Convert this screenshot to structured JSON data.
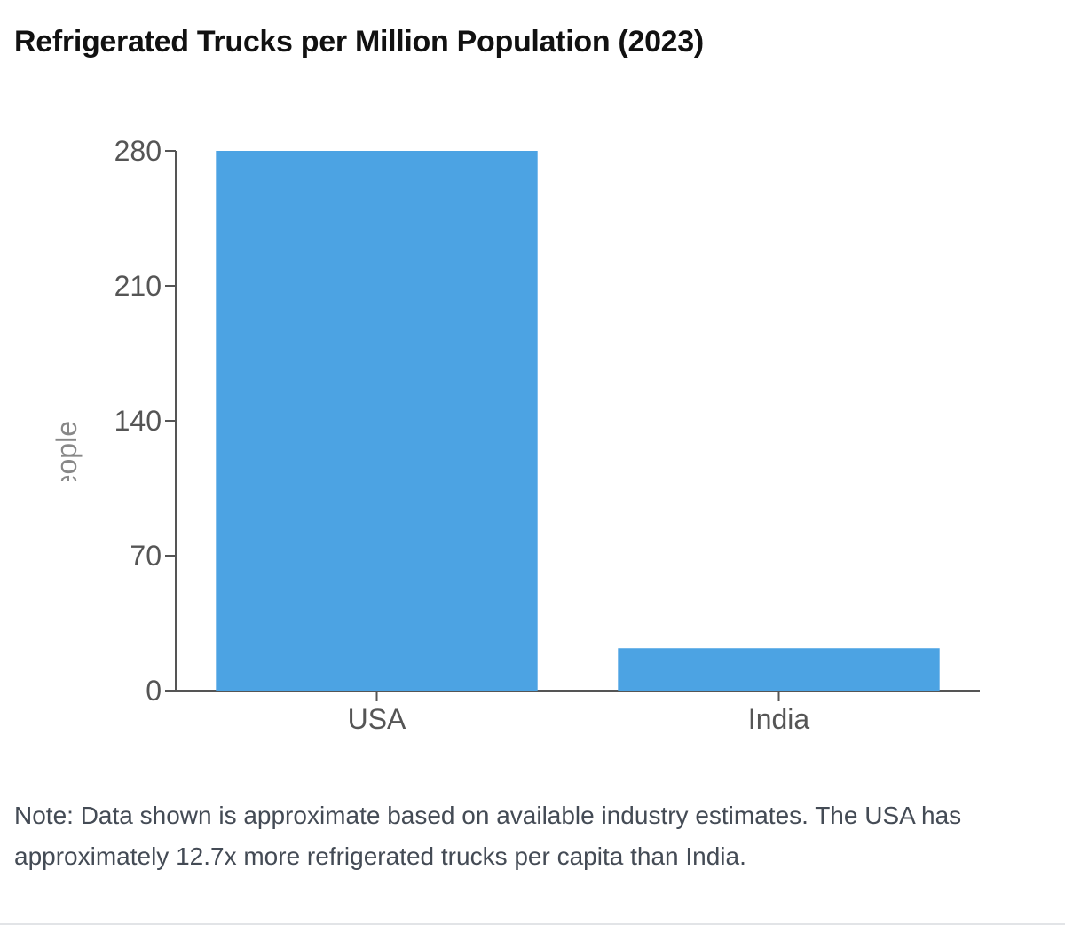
{
  "chart_data": {
    "type": "bar",
    "title": "Refrigerated Trucks per Million Population (2023)",
    "categories": [
      "USA",
      "India"
    ],
    "values": [
      280,
      22
    ],
    "ylabel": "Trucks per Million People",
    "xlabel": "",
    "ylim": [
      0,
      280
    ],
    "yticks": [
      0,
      70,
      140,
      210,
      280
    ],
    "grid": false,
    "bar_color": "#4ca3e3",
    "note": "Note: Data shown is approximate based on available industry estimates. The USA has approximately 12.7x more refrigerated trucks per capita than India."
  }
}
